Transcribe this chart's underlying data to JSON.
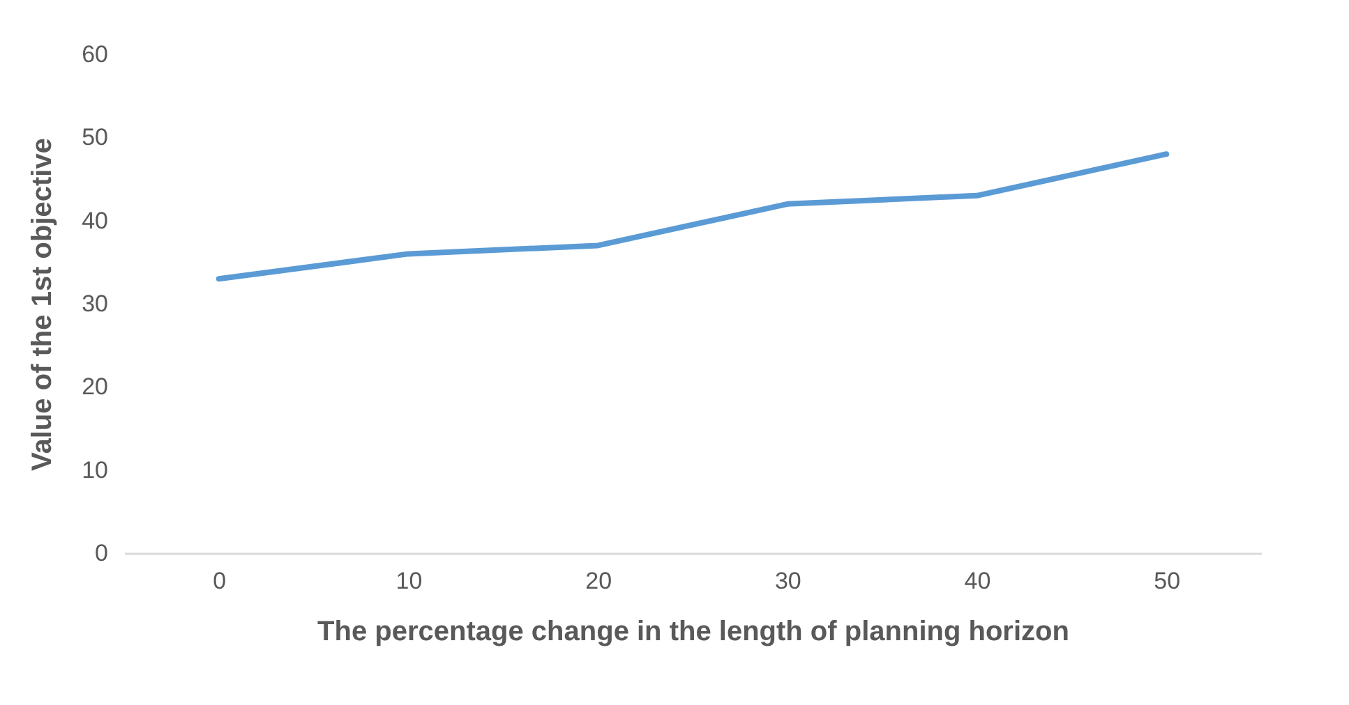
{
  "chart_data": {
    "type": "line",
    "xlabel": "The percentage change in the length of planning horizon",
    "ylabel": "Value of the 1st objective",
    "categories": [
      "0",
      "10",
      "20",
      "30",
      "40",
      "50"
    ],
    "series": [
      {
        "color": "#5b9bd5",
        "values": [
          33,
          36,
          37,
          42,
          43,
          48
        ]
      }
    ],
    "ylim": [
      0,
      60
    ],
    "yticks": [
      0,
      10,
      20,
      30,
      40,
      50,
      60
    ],
    "grid": false,
    "marker": "none",
    "line_style": "solid"
  }
}
